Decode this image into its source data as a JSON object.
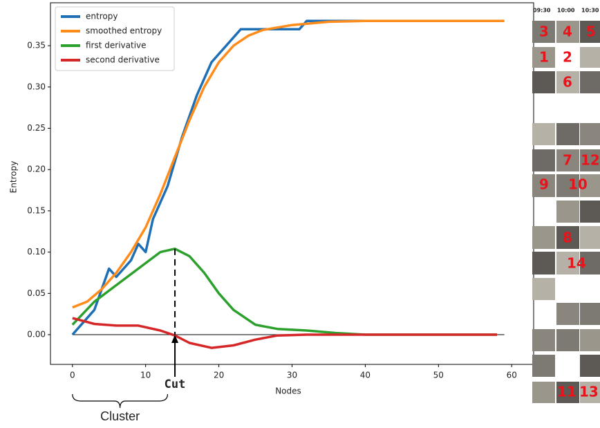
{
  "chart_data": {
    "type": "line",
    "xlabel": "Nodes",
    "ylabel": "Entropy",
    "xlim": [
      -3,
      63
    ],
    "ylim": [
      -0.036,
      0.402
    ],
    "xticks": [
      0,
      10,
      20,
      30,
      40,
      50,
      60
    ],
    "yticks": [
      {
        "value": 0,
        "label": "0.00"
      },
      {
        "value": 0.05,
        "label": "0.05"
      },
      {
        "value": 0.1,
        "label": "0.10"
      },
      {
        "value": 0.15,
        "label": "0.15"
      },
      {
        "value": 0.2,
        "label": "0.20"
      },
      {
        "value": 0.25,
        "label": "0.25"
      },
      {
        "value": 0.3,
        "label": "0.30"
      },
      {
        "value": 0.35,
        "label": "0.35"
      }
    ],
    "legend": "upper left",
    "series": [
      {
        "name": "entropy",
        "color": "#1f6fb4",
        "x": [
          0,
          3,
          5,
          6,
          8,
          9,
          10,
          11,
          13,
          15,
          17,
          19,
          23,
          31,
          32,
          59
        ],
        "values": [
          0,
          0.03,
          0.08,
          0.07,
          0.09,
          0.11,
          0.1,
          0.14,
          0.18,
          0.24,
          0.29,
          0.33,
          0.37,
          0.37,
          0.38,
          0.38
        ]
      },
      {
        "name": "smoothed entropy",
        "color": "#ff8c1a",
        "x": [
          0,
          2,
          4,
          6,
          8,
          10,
          12,
          14,
          16,
          18,
          20,
          22,
          24,
          26,
          30,
          35,
          40,
          59
        ],
        "values": [
          0.033,
          0.04,
          0.055,
          0.075,
          0.1,
          0.13,
          0.17,
          0.215,
          0.26,
          0.3,
          0.33,
          0.35,
          0.362,
          0.369,
          0.375,
          0.379,
          0.38,
          0.38
        ]
      },
      {
        "name": "first derivative",
        "color": "#2ca02c",
        "x": [
          0,
          3,
          6,
          9,
          12,
          14,
          16,
          18,
          20,
          22,
          25,
          28,
          32,
          36,
          40,
          58
        ],
        "values": [
          0.012,
          0.04,
          0.06,
          0.08,
          0.1,
          0.104,
          0.095,
          0.075,
          0.05,
          0.03,
          0.012,
          0.007,
          0.005,
          0.002,
          0,
          0
        ]
      },
      {
        "name": "second derivative",
        "color": "#d62728",
        "x": [
          0,
          3,
          6,
          9,
          12,
          14,
          16,
          19,
          22,
          25,
          28,
          32,
          58
        ],
        "values": [
          0.02,
          0.013,
          0.011,
          0.011,
          0.005,
          -0.001,
          -0.01,
          -0.016,
          -0.013,
          -0.006,
          -0.001,
          0,
          0
        ]
      }
    ],
    "hline": {
      "y": 0,
      "x": [
        0,
        59
      ]
    },
    "cut": {
      "text": "Cut",
      "x": 14,
      "y": 0.104
    },
    "cluster": {
      "text": "Cluster",
      "x": [
        0,
        13
      ]
    }
  },
  "timeline": {
    "times": [
      "09:30",
      "10:00",
      "10:30"
    ],
    "labels": [
      "3",
      "4",
      "5",
      "1",
      "2",
      "6",
      "7",
      "12",
      "9",
      "10",
      "8",
      "14",
      "11",
      "13"
    ]
  }
}
